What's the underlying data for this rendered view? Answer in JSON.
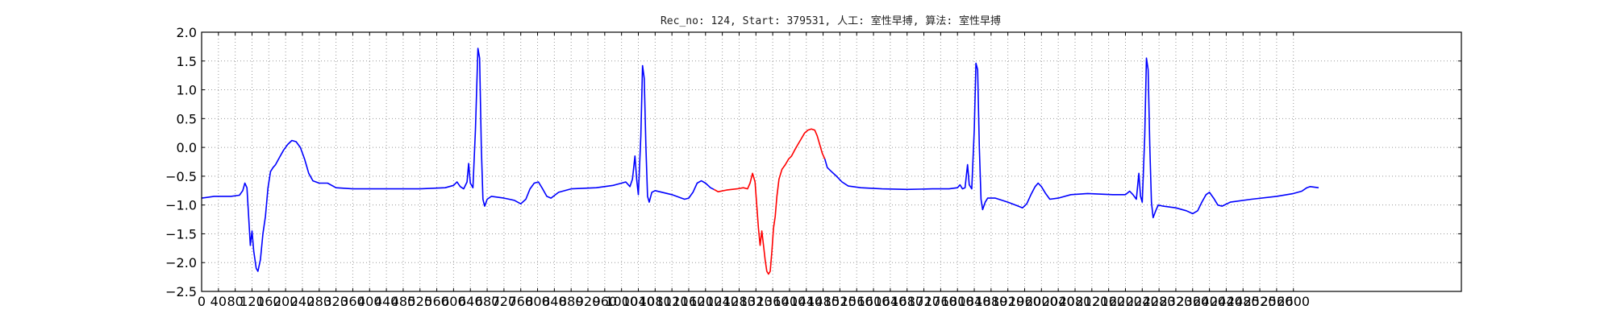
{
  "chart_data": {
    "type": "line",
    "title": "Rec_no: 124, Start: 379531, 人工: 室性早搏, 算法: 室性早搏",
    "xlabel": "",
    "ylabel": "",
    "xlim": [
      0,
      3000
    ],
    "ylim": [
      -2.5,
      2.0
    ],
    "grid": true,
    "x_ticks": [
      0,
      40,
      80,
      120,
      160,
      200,
      240,
      280,
      320,
      360,
      400,
      440,
      480,
      520,
      560,
      600,
      640,
      680,
      720,
      760,
      800,
      840,
      880,
      920,
      960,
      1000,
      1040,
      1080,
      1120,
      1160,
      1200,
      1240,
      1280,
      1320,
      1360,
      1400,
      1440,
      1480,
      1520,
      1560,
      1600,
      1640,
      1680,
      1720,
      1760,
      1800,
      1840,
      1880,
      1920,
      1960,
      2000,
      2040,
      2080,
      2120,
      2160,
      2200,
      2240,
      2280,
      2320,
      2360,
      2400,
      2440,
      2480,
      2520,
      2560,
      2600
    ],
    "y_ticks": [
      "2.0",
      "1.5",
      "1.0",
      "0.5",
      "0.0",
      "−0.5",
      "−1.0",
      "−1.5",
      "−2.0",
      "−2.5"
    ],
    "colors": {
      "normal": "#0000ff",
      "highlight": "#ff0000",
      "grid": "#999999"
    },
    "series": [
      {
        "color": "#0000ff",
        "points": [
          [
            0,
            -0.88
          ],
          [
            30,
            -0.85
          ],
          [
            70,
            -0.85
          ],
          [
            90,
            -0.83
          ],
          [
            98,
            -0.75
          ],
          [
            103,
            -0.62
          ],
          [
            108,
            -0.7
          ],
          [
            112,
            -1.2
          ],
          [
            116,
            -1.7
          ],
          [
            120,
            -1.45
          ],
          [
            124,
            -1.8
          ],
          [
            130,
            -2.1
          ],
          [
            134,
            -2.15
          ],
          [
            140,
            -1.95
          ],
          [
            146,
            -1.5
          ],
          [
            152,
            -1.2
          ],
          [
            158,
            -0.7
          ],
          [
            164,
            -0.42
          ],
          [
            170,
            -0.35
          ],
          [
            176,
            -0.3
          ],
          [
            185,
            -0.18
          ],
          [
            195,
            -0.05
          ],
          [
            205,
            0.05
          ],
          [
            215,
            0.12
          ],
          [
            225,
            0.1
          ],
          [
            235,
            0.0
          ],
          [
            245,
            -0.2
          ],
          [
            255,
            -0.45
          ],
          [
            265,
            -0.58
          ],
          [
            280,
            -0.62
          ],
          [
            300,
            -0.62
          ],
          [
            320,
            -0.7
          ],
          [
            360,
            -0.72
          ],
          [
            440,
            -0.72
          ],
          [
            520,
            -0.72
          ],
          [
            580,
            -0.7
          ],
          [
            600,
            -0.66
          ],
          [
            608,
            -0.6
          ],
          [
            616,
            -0.68
          ],
          [
            624,
            -0.72
          ],
          [
            632,
            -0.6
          ],
          [
            636,
            -0.28
          ],
          [
            640,
            -0.62
          ],
          [
            646,
            -0.7
          ],
          [
            652,
            0.3
          ],
          [
            658,
            1.72
          ],
          [
            662,
            1.55
          ],
          [
            666,
            0.0
          ],
          [
            670,
            -0.9
          ],
          [
            674,
            -1.02
          ],
          [
            680,
            -0.9
          ],
          [
            690,
            -0.85
          ],
          [
            720,
            -0.88
          ],
          [
            745,
            -0.92
          ],
          [
            760,
            -0.98
          ],
          [
            772,
            -0.9
          ],
          [
            782,
            -0.72
          ],
          [
            792,
            -0.62
          ],
          [
            802,
            -0.6
          ],
          [
            812,
            -0.72
          ],
          [
            822,
            -0.85
          ],
          [
            832,
            -0.88
          ],
          [
            850,
            -0.78
          ],
          [
            880,
            -0.72
          ],
          [
            940,
            -0.7
          ],
          [
            980,
            -0.66
          ],
          [
            1000,
            -0.62
          ],
          [
            1010,
            -0.6
          ],
          [
            1020,
            -0.68
          ],
          [
            1026,
            -0.55
          ],
          [
            1032,
            -0.15
          ],
          [
            1036,
            -0.55
          ],
          [
            1040,
            -0.82
          ],
          [
            1046,
            0.2
          ],
          [
            1050,
            1.42
          ],
          [
            1054,
            1.2
          ],
          [
            1058,
            0.0
          ],
          [
            1062,
            -0.85
          ],
          [
            1066,
            -0.95
          ],
          [
            1072,
            -0.78
          ],
          [
            1080,
            -0.75
          ],
          [
            1120,
            -0.82
          ],
          [
            1150,
            -0.9
          ],
          [
            1160,
            -0.88
          ],
          [
            1170,
            -0.78
          ],
          [
            1180,
            -0.62
          ],
          [
            1190,
            -0.58
          ],
          [
            1200,
            -0.62
          ],
          [
            1212,
            -0.7
          ],
          [
            1220,
            -0.73
          ]
        ]
      },
      {
        "color": "#ff0000",
        "points": [
          [
            1220,
            -0.73
          ],
          [
            1230,
            -0.77
          ],
          [
            1250,
            -0.74
          ],
          [
            1275,
            -0.72
          ],
          [
            1290,
            -0.7
          ],
          [
            1300,
            -0.72
          ],
          [
            1306,
            -0.62
          ],
          [
            1312,
            -0.45
          ],
          [
            1318,
            -0.6
          ],
          [
            1322,
            -1.0
          ],
          [
            1326,
            -1.4
          ],
          [
            1330,
            -1.7
          ],
          [
            1334,
            -1.45
          ],
          [
            1338,
            -1.7
          ],
          [
            1342,
            -1.95
          ],
          [
            1346,
            -2.15
          ],
          [
            1350,
            -2.2
          ],
          [
            1354,
            -2.15
          ],
          [
            1358,
            -1.8
          ],
          [
            1362,
            -1.4
          ],
          [
            1366,
            -1.2
          ],
          [
            1370,
            -0.85
          ],
          [
            1375,
            -0.55
          ],
          [
            1382,
            -0.38
          ],
          [
            1390,
            -0.3
          ],
          [
            1398,
            -0.2
          ],
          [
            1405,
            -0.15
          ],
          [
            1412,
            -0.05
          ],
          [
            1420,
            0.05
          ],
          [
            1428,
            0.15
          ],
          [
            1436,
            0.25
          ],
          [
            1444,
            0.3
          ],
          [
            1452,
            0.32
          ],
          [
            1460,
            0.3
          ],
          [
            1466,
            0.2
          ],
          [
            1472,
            0.05
          ],
          [
            1478,
            -0.1
          ],
          [
            1484,
            -0.2
          ]
        ]
      },
      {
        "color": "#0000ff",
        "points": [
          [
            1484,
            -0.2
          ],
          [
            1490,
            -0.35
          ],
          [
            1500,
            -0.42
          ],
          [
            1512,
            -0.5
          ],
          [
            1525,
            -0.6
          ],
          [
            1540,
            -0.67
          ],
          [
            1570,
            -0.7
          ],
          [
            1620,
            -0.72
          ],
          [
            1680,
            -0.73
          ],
          [
            1740,
            -0.72
          ],
          [
            1780,
            -0.72
          ],
          [
            1800,
            -0.7
          ],
          [
            1806,
            -0.65
          ],
          [
            1812,
            -0.72
          ],
          [
            1818,
            -0.7
          ],
          [
            1824,
            -0.3
          ],
          [
            1828,
            -0.65
          ],
          [
            1834,
            -0.72
          ],
          [
            1840,
            0.3
          ],
          [
            1844,
            1.46
          ],
          [
            1848,
            1.35
          ],
          [
            1852,
            0.0
          ],
          [
            1856,
            -0.9
          ],
          [
            1860,
            -1.08
          ],
          [
            1866,
            -0.95
          ],
          [
            1872,
            -0.88
          ],
          [
            1890,
            -0.88
          ],
          [
            1920,
            -0.95
          ],
          [
            1945,
            -1.02
          ],
          [
            1955,
            -1.05
          ],
          [
            1965,
            -0.98
          ],
          [
            1975,
            -0.82
          ],
          [
            1985,
            -0.68
          ],
          [
            1992,
            -0.62
          ],
          [
            2000,
            -0.68
          ],
          [
            2010,
            -0.8
          ],
          [
            2020,
            -0.9
          ],
          [
            2040,
            -0.88
          ],
          [
            2070,
            -0.82
          ],
          [
            2110,
            -0.8
          ],
          [
            2170,
            -0.82
          ],
          [
            2200,
            -0.82
          ],
          [
            2210,
            -0.76
          ],
          [
            2218,
            -0.82
          ],
          [
            2226,
            -0.9
          ],
          [
            2232,
            -0.45
          ],
          [
            2236,
            -0.85
          ],
          [
            2240,
            -0.95
          ],
          [
            2246,
            0.2
          ],
          [
            2250,
            1.55
          ],
          [
            2254,
            1.35
          ],
          [
            2258,
            0.0
          ],
          [
            2262,
            -0.95
          ],
          [
            2266,
            -1.22
          ],
          [
            2272,
            -1.1
          ],
          [
            2278,
            -1.0
          ],
          [
            2290,
            -1.02
          ],
          [
            2320,
            -1.05
          ],
          [
            2345,
            -1.1
          ],
          [
            2360,
            -1.15
          ],
          [
            2372,
            -1.1
          ],
          [
            2382,
            -0.95
          ],
          [
            2392,
            -0.82
          ],
          [
            2400,
            -0.78
          ],
          [
            2410,
            -0.88
          ],
          [
            2420,
            -1.0
          ],
          [
            2430,
            -1.02
          ],
          [
            2450,
            -0.95
          ],
          [
            2500,
            -0.9
          ],
          [
            2560,
            -0.85
          ],
          [
            2600,
            -0.8
          ],
          [
            2620,
            -0.76
          ],
          [
            2632,
            -0.7
          ],
          [
            2640,
            -0.68
          ],
          [
            2660,
            -0.7
          ]
        ]
      }
    ]
  }
}
